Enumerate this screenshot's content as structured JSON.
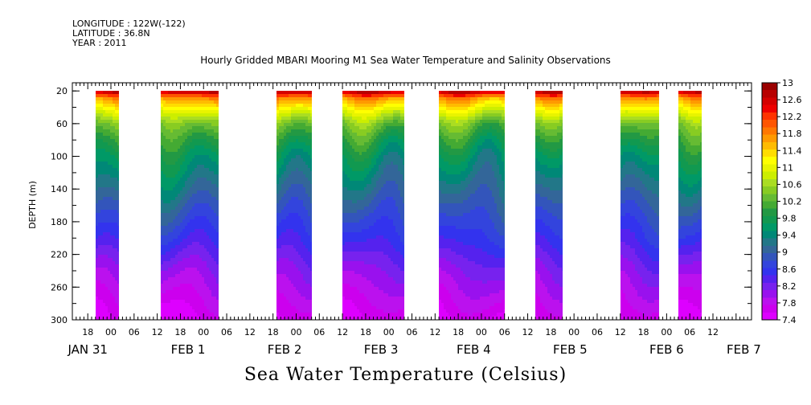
{
  "header": {
    "longitude": "LONGITUDE : 122W(-122)",
    "latitude": "LATITUDE : 36.8N",
    "year": "YEAR : 2011"
  },
  "title": "Hourly Gridded MBARI Mooring M1 Sea Water Temperature and Salinity Observations",
  "bottom_title": "Sea Water Temperature (Celsius)",
  "chart_data": {
    "type": "heatmap",
    "title": "Hourly Gridded MBARI Mooring M1 Sea Water Temperature and Salinity Observations",
    "xlabel": "",
    "ylabel": "DEPTH (m)",
    "ylim": [
      300,
      10
    ],
    "y_inverted": true,
    "xlim_hours": [
      -10,
      166
    ],
    "x_units": "hours since JAN 31 00:00, 2011",
    "x_tick_labels": [
      "18",
      "00",
      "06",
      "12",
      "18",
      "00",
      "06",
      "12",
      "18",
      "00",
      "06",
      "12",
      "18",
      "00",
      "06",
      "12",
      "18",
      "00",
      "06",
      "12",
      "18",
      "00",
      "06",
      "12",
      "18",
      "00",
      "06",
      "12"
    ],
    "x_tick_hours": [
      -6,
      0,
      6,
      12,
      18,
      24,
      30,
      36,
      42,
      48,
      54,
      60,
      66,
      72,
      78,
      84,
      90,
      96,
      102,
      108,
      114,
      120,
      126,
      132,
      138,
      144,
      150,
      156
    ],
    "x_day_labels": [
      {
        "label": "JAN 31",
        "hour": -6
      },
      {
        "label": "FEB 1",
        "hour": 20
      },
      {
        "label": "FEB 2",
        "hour": 45
      },
      {
        "label": "FEB 3",
        "hour": 70
      },
      {
        "label": "FEB 4",
        "hour": 94
      },
      {
        "label": "FEB 5",
        "hour": 119
      },
      {
        "label": "FEB 6",
        "hour": 144
      },
      {
        "label": "FEB 7",
        "hour": 164
      }
    ],
    "y_ticks": [
      20,
      60,
      100,
      140,
      180,
      220,
      260,
      300
    ],
    "colorbar": {
      "min": 7.4,
      "max": 13,
      "step": 0.2,
      "labels": [
        "13",
        "12.6",
        "12.2",
        "11.8",
        "11.4",
        "11",
        "10.6",
        "10.2",
        "9.8",
        "9.4",
        "9",
        "8.6",
        "8.2",
        "7.8",
        "7.4"
      ],
      "colors": [
        "#9a0000",
        "#b80000",
        "#d40000",
        "#ee0000",
        "#ff3300",
        "#ff5500",
        "#ff7700",
        "#ff9900",
        "#ffbb00",
        "#ffdd00",
        "#ffff00",
        "#e8f400",
        "#ccee00",
        "#aadd22",
        "#88cc22",
        "#66bb33",
        "#44aa33",
        "#229944",
        "#119950",
        "#009966",
        "#008877",
        "#227788",
        "#336699",
        "#3355bb",
        "#3344dd",
        "#3333ee",
        "#5522ee",
        "#7722ee",
        "#9911ee",
        "#bb11ee",
        "#cc00ee",
        "#dd00ff"
      ]
    },
    "data_segments": [
      {
        "start_hour": -4,
        "end_hour": 2
      },
      {
        "start_hour": 13,
        "end_hour": 28
      },
      {
        "start_hour": 43,
        "end_hour": 52
      },
      {
        "start_hour": 60,
        "end_hour": 76
      },
      {
        "start_hour": 85,
        "end_hour": 102
      },
      {
        "start_hour": 110,
        "end_hour": 117
      },
      {
        "start_hour": 132,
        "end_hour": 142
      },
      {
        "start_hour": 147,
        "end_hour": 153
      }
    ],
    "profile_depths": [
      20,
      30,
      45,
      60,
      80,
      100,
      130,
      160,
      200,
      240,
      280,
      300
    ],
    "profile_temps": [
      12.7,
      11.6,
      10.9,
      10.3,
      9.9,
      9.6,
      9.3,
      9.0,
      8.6,
      8.1,
      7.7,
      7.5
    ],
    "grid": false
  }
}
